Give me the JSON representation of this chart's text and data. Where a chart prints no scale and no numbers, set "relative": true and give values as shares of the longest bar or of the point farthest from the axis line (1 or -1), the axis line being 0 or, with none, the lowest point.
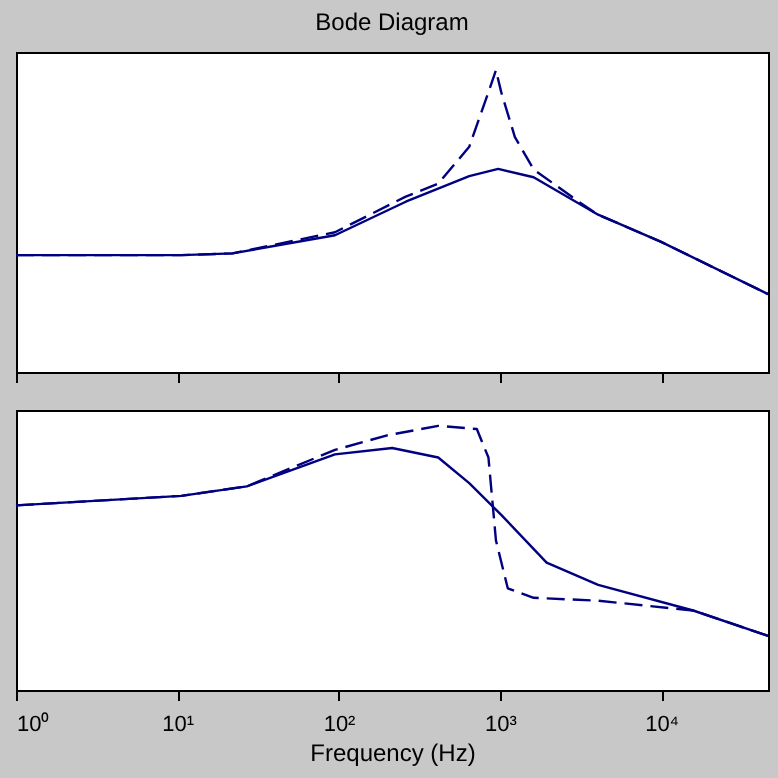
{
  "chart_data": [
    {
      "type": "line",
      "title": "Bode Diagram",
      "relative": true,
      "log": "x",
      "tick_labels": false,
      "xlim": [
        1,
        46000
      ],
      "xticks": [
        1,
        10,
        100,
        1000,
        10000
      ],
      "series": [
        {
          "color": "#000080",
          "line_style": "solid",
          "x": [
            1,
            10.6,
            22,
            95,
            261,
            646,
            977,
            1620,
            4070,
            10000,
            46000
          ],
          "values": [
            0.387,
            0.387,
            0.393,
            0.453,
            0.564,
            0.649,
            0.673,
            0.645,
            0.521,
            0.431,
            0.258
          ]
        },
        {
          "color": "#000080",
          "line_style": "dashed",
          "x": [
            1,
            10.6,
            22,
            95,
            261,
            415,
            646,
            850,
            946,
            1020,
            1240,
            1620,
            3090,
            4070,
            10000,
            46000
          ],
          "values": [
            0.387,
            0.387,
            0.393,
            0.463,
            0.581,
            0.624,
            0.746,
            0.927,
            1.0,
            0.927,
            0.778,
            0.671,
            0.564,
            0.521,
            0.431,
            0.258
          ]
        }
      ]
    },
    {
      "type": "line",
      "xlabel": "Frequency  (Hz)",
      "relative": true,
      "log": "x",
      "tick_labels": "x",
      "xlim": [
        1,
        46000
      ],
      "xticks": [
        {
          "value": 1,
          "label": "10⁰"
        },
        {
          "value": 10,
          "label": "10¹"
        },
        {
          "value": 100,
          "label": "10²"
        },
        {
          "value": 1000,
          "label": "10³"
        },
        {
          "value": 10000,
          "label": "10⁴"
        }
      ],
      "series": [
        {
          "color": "#000080",
          "line_style": "solid",
          "x": [
            1,
            10.6,
            27,
            95,
            215,
            415,
            646,
            1020,
            1950,
            4070,
            15800,
            46000
          ],
          "values": [
            0.699,
            0.735,
            0.771,
            0.892,
            0.916,
            0.88,
            0.783,
            0.663,
            0.482,
            0.398,
            0.301,
            0.205
          ]
        },
        {
          "color": "#000080",
          "line_style": "dashed",
          "x": [
            1,
            10.6,
            27,
            95,
            200,
            415,
            720,
            850,
            946,
            1120,
            1620,
            4070,
            15800,
            46000
          ],
          "values": [
            0.699,
            0.735,
            0.771,
            0.909,
            0.964,
            1.0,
            0.988,
            0.88,
            0.566,
            0.385,
            0.349,
            0.338,
            0.301,
            0.205
          ]
        }
      ]
    }
  ]
}
